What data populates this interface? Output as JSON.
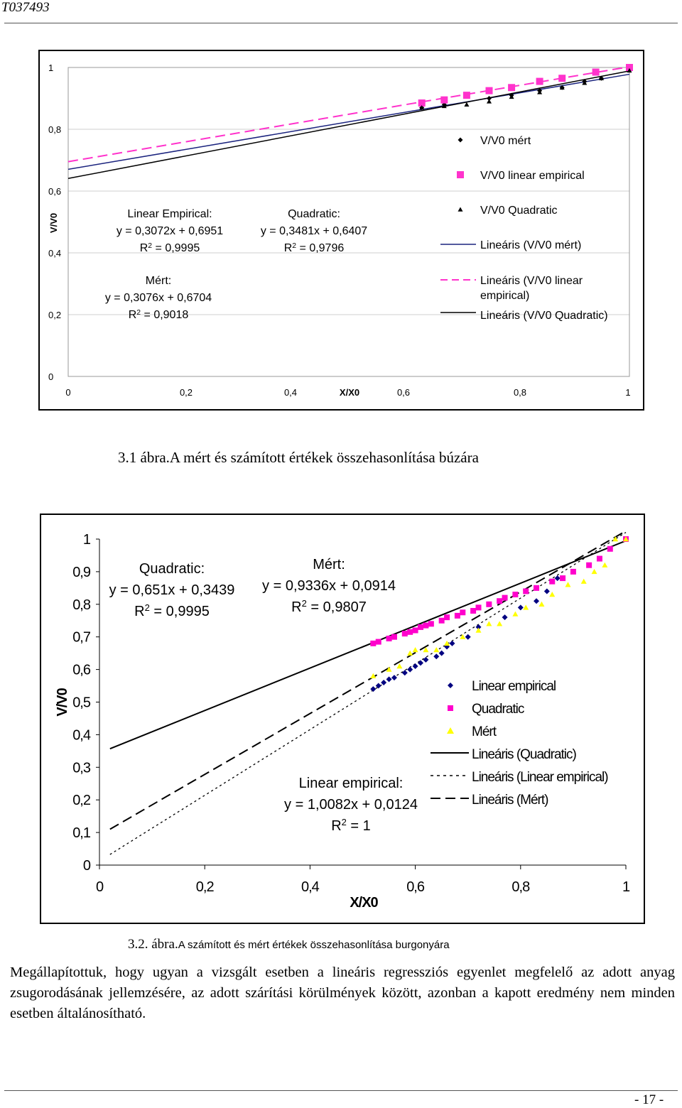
{
  "header": {
    "doc_id": "T037493"
  },
  "chart_data": [
    {
      "type": "scatter",
      "xlabel": "X/X0",
      "ylabel": "V/V0",
      "xlim": [
        0,
        1
      ],
      "ylim": [
        0,
        1
      ],
      "x_ticks": [
        "0",
        "0,2",
        "0,4",
        "0,6",
        "0,8",
        "1"
      ],
      "y_ticks": [
        "0",
        "0,2",
        "0,4",
        "0,6",
        "0,8",
        "1"
      ],
      "grid": "horizontal",
      "legend_position": "right",
      "series": [
        {
          "name": "V/V0 mért",
          "marker": "diamond",
          "color": "#000000",
          "x": [
            0.63,
            0.67,
            0.75,
            0.79,
            0.84,
            0.88,
            0.92,
            0.95
          ],
          "y": [
            0.87,
            0.88,
            0.9,
            0.91,
            0.925,
            0.935,
            0.955,
            0.965
          ]
        },
        {
          "name": "V/V0 linear empirical",
          "marker": "square",
          "color": "#ff33cc",
          "x": [
            0.63,
            0.67,
            0.71,
            0.75,
            0.79,
            0.84,
            0.88,
            0.94,
            1.0
          ],
          "y": [
            0.885,
            0.895,
            0.91,
            0.925,
            0.935,
            0.955,
            0.965,
            0.985,
            1.0
          ]
        },
        {
          "name": "V/V0 Quadratic",
          "marker": "triangle",
          "color": "#000000",
          "x": [
            0.63,
            0.67,
            0.71,
            0.75,
            0.79,
            0.84,
            0.88,
            0.92,
            0.95,
            1.0
          ],
          "y": [
            0.87,
            0.875,
            0.88,
            0.89,
            0.905,
            0.92,
            0.935,
            0.95,
            0.965,
            0.99
          ]
        }
      ],
      "trendlines": [
        {
          "name": "Lineáris (V/V0 mért)",
          "style": "solid",
          "color": "#1a237e",
          "slope": 0.3076,
          "intercept": 0.6704
        },
        {
          "name": "Lineáris (V/V0 linear empirical)",
          "style": "dashed",
          "color": "#ff33cc",
          "slope": 0.3072,
          "intercept": 0.6951
        },
        {
          "name": "Lineáris (V/V0 Quadratic)",
          "style": "solid",
          "color": "#000000",
          "slope": 0.3481,
          "intercept": 0.6407
        }
      ],
      "legend_lines": [
        "V/V0 mért",
        "V/V0 linear empirical",
        "V/V0 Quadratic",
        "Lineáris (V/V0 mért)",
        "Lineáris (V/V0 linear",
        "empirical)",
        "Lineáris (V/V0 Quadratic)"
      ],
      "annotations": {
        "linear": {
          "label": "Linear Empirical:",
          "eq": "y = 0,3072x + 0,6951",
          "r2_pre": "R",
          "r2_sup": "2",
          "r2_post": " = 0,9995"
        },
        "quadratic": {
          "label": "Quadratic:",
          "eq": "y = 0,3481x + 0,6407",
          "r2_pre": "R",
          "r2_sup": "2",
          "r2_post": " = 0,9796"
        },
        "mert": {
          "label": "Mért:",
          "eq": "y = 0,3076x + 0,6704",
          "r2_pre": "R",
          "r2_sup": "2",
          "r2_post": " = 0,9018"
        }
      }
    },
    {
      "type": "scatter",
      "xlabel": "X/X0",
      "ylabel": "V/V0",
      "xlim": [
        0,
        1
      ],
      "ylim": [
        0,
        1
      ],
      "x_ticks": [
        "0",
        "0,2",
        "0,4",
        "0,6",
        "0,8",
        "1"
      ],
      "y_ticks": [
        "0",
        "0,1",
        "0,2",
        "0,3",
        "0,4",
        "0,5",
        "0,6",
        "0,7",
        "0,8",
        "0,9",
        "1"
      ],
      "grid": "none",
      "legend_position": "right",
      "series": [
        {
          "name": "Linear empirical",
          "marker": "diamond",
          "color": "#000080",
          "x": [
            0.52,
            0.53,
            0.54,
            0.55,
            0.56,
            0.58,
            0.59,
            0.6,
            0.61,
            0.62,
            0.64,
            0.65,
            0.66,
            0.67,
            0.7,
            0.72,
            0.77,
            0.8,
            0.83,
            0.85,
            0.87
          ],
          "y": [
            0.54,
            0.55,
            0.56,
            0.57,
            0.575,
            0.59,
            0.6,
            0.61,
            0.62,
            0.63,
            0.64,
            0.65,
            0.67,
            0.68,
            0.7,
            0.73,
            0.76,
            0.79,
            0.81,
            0.84,
            0.88
          ]
        },
        {
          "name": "Quadratic",
          "marker": "square",
          "color": "#ff00cc",
          "x": [
            0.52,
            0.53,
            0.55,
            0.56,
            0.58,
            0.59,
            0.6,
            0.61,
            0.62,
            0.63,
            0.65,
            0.66,
            0.68,
            0.69,
            0.71,
            0.72,
            0.74,
            0.76,
            0.77,
            0.79,
            0.81,
            0.83,
            0.86,
            0.88,
            0.9,
            0.93,
            0.95,
            0.97,
            1.0
          ],
          "y": [
            0.68,
            0.685,
            0.695,
            0.7,
            0.71,
            0.715,
            0.72,
            0.73,
            0.735,
            0.74,
            0.75,
            0.76,
            0.765,
            0.775,
            0.78,
            0.79,
            0.8,
            0.81,
            0.82,
            0.83,
            0.84,
            0.85,
            0.87,
            0.88,
            0.9,
            0.92,
            0.94,
            0.97,
            1.0
          ]
        },
        {
          "name": "Mért",
          "marker": "triangle",
          "color": "#ffff00",
          "x": [
            0.52,
            0.55,
            0.57,
            0.59,
            0.6,
            0.62,
            0.64,
            0.66,
            0.69,
            0.72,
            0.74,
            0.76,
            0.79,
            0.81,
            0.84,
            0.86,
            0.89,
            0.92,
            0.94,
            0.96,
            0.98,
            1.0
          ],
          "y": [
            0.58,
            0.6,
            0.61,
            0.65,
            0.66,
            0.66,
            0.66,
            0.68,
            0.7,
            0.72,
            0.74,
            0.74,
            0.77,
            0.79,
            0.8,
            0.83,
            0.86,
            0.87,
            0.9,
            0.92,
            1.0,
            1.0
          ]
        }
      ],
      "trendlines": [
        {
          "name": "Lineáris (Quadratic)",
          "style": "solid",
          "color": "#000000",
          "slope": 0.651,
          "intercept": 0.3439
        },
        {
          "name": "Lineáris (Linear empirical)",
          "style": "dotted",
          "color": "#000000",
          "slope": 1.0082,
          "intercept": 0.0124
        },
        {
          "name": "Lineáris (Mért)",
          "style": "dashed",
          "color": "#000000",
          "slope": 0.9336,
          "intercept": 0.0914
        }
      ],
      "legend_lines": [
        "Linear empirical",
        "Quadratic",
        "Mért",
        "Lineáris (Quadratic)",
        "Lineáris (Linear empirical)",
        "Lineáris (Mért)"
      ],
      "annotations": {
        "quadratic": {
          "label": "Quadratic:",
          "eq": "y = 0,651x + 0,3439",
          "r2_pre": "R",
          "r2_sup": "2",
          "r2_post": " = 0,9995"
        },
        "mert": {
          "label": "Mért:",
          "eq": "y = 0,9336x + 0,0914",
          "r2_pre": "R",
          "r2_sup": "2",
          "r2_post": " = 0,9807"
        },
        "linear": {
          "label": "Linear empirical:",
          "eq": "y = 1,0082x + 0,0124",
          "r2_pre": "R",
          "r2_sup": "2",
          "r2_post": " = 1"
        }
      }
    }
  ],
  "captions": {
    "fig1": "3.1 ábra.A mért és számított értékek összehasonlítása búzára",
    "fig2_num": "3.2. ábra.",
    "fig2_text": "A számított és mért értékek összehasonlítása burgonyára"
  },
  "body_text": "Megállapítottuk, hogy ugyan a vizsgált esetben a lineáris regressziós egyenlet megfelelő az adott anyag zsugorodásának jellemzésére, az adott szárítási körülmények között, azonban a kapott eredmény nem minden esetben általánosítható.",
  "footer": {
    "page_number": "- 17 -"
  }
}
